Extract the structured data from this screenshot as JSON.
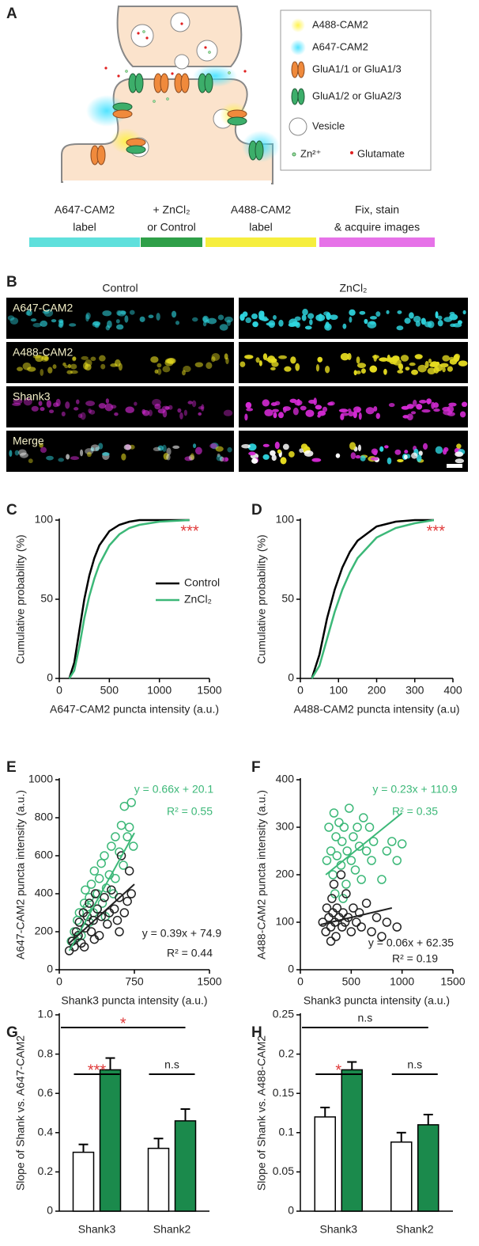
{
  "panel_labels": [
    "A",
    "B",
    "C",
    "D",
    "E",
    "F",
    "G",
    "H"
  ],
  "diagram": {
    "legend": [
      "A488-CAM2",
      "A647-CAM2",
      "GluA1/1 or GluA1/3",
      "GluA1/2 or GluA2/3",
      "Vesicle",
      "Zn²⁺",
      "Glutamate"
    ],
    "steps": [
      {
        "label": [
          "A647-CAM2",
          "label"
        ],
        "color": "#5fe0dc"
      },
      {
        "label": [
          "+ ZnCl₂",
          "or Control"
        ],
        "color": "#2f9f48"
      },
      {
        "label": [
          "A488-CAM2",
          "label"
        ],
        "color": "#f6ee3e"
      },
      {
        "label": [
          "Fix, stain",
          "& acquire images"
        ],
        "color": "#e672e8"
      }
    ]
  },
  "images": {
    "columns": [
      "Control",
      "ZnCl₂"
    ],
    "rows": [
      {
        "label": "A647-CAM2",
        "color": "#2fd6e0"
      },
      {
        "label": "A488-CAM2",
        "color": "#e6dc20"
      },
      {
        "label": "Shank3",
        "color": "#d42ad4"
      },
      {
        "label": "Merge",
        "color": "#ffffff"
      }
    ]
  },
  "chart_data": [
    {
      "type": "line",
      "xlabel": "A647-CAM2 puncta intensity (a.u.)",
      "ylabel": "Cumulative probability (%)",
      "xlim": [
        0,
        1500
      ],
      "ylim": [
        0,
        100
      ],
      "xticks": [
        0,
        500,
        1000,
        1500
      ],
      "yticks": [
        0,
        50,
        100
      ],
      "x": [
        100,
        150,
        200,
        250,
        300,
        350,
        400,
        500,
        600,
        700,
        800,
        1000,
        1300
      ],
      "series": [
        {
          "name": "Control",
          "color": "#000000",
          "values": [
            0,
            10,
            30,
            50,
            65,
            76,
            84,
            93,
            97,
            99,
            100,
            100,
            100
          ]
        },
        {
          "name": "ZnCl₂",
          "color": "#3cb878",
          "values": [
            0,
            5,
            20,
            38,
            52,
            63,
            72,
            84,
            91,
            95,
            97,
            99,
            100
          ]
        }
      ],
      "annotations": [
        {
          "text": "***",
          "color": "#e03a3a"
        }
      ]
    },
    {
      "type": "line",
      "xlabel": "A488-CAM2 puncta intensity (a.u)",
      "ylabel": "Cumulative probability (%)",
      "xlim": [
        0,
        400
      ],
      "ylim": [
        0,
        100
      ],
      "xticks": [
        0,
        100,
        200,
        300,
        400
      ],
      "yticks": [
        0,
        50,
        100
      ],
      "x": [
        30,
        50,
        70,
        90,
        110,
        130,
        150,
        200,
        250,
        300,
        350
      ],
      "series": [
        {
          "color": "#000000",
          "values": [
            0,
            15,
            38,
            56,
            70,
            80,
            87,
            96,
            99,
            100,
            100
          ]
        },
        {
          "color": "#3cb878",
          "values": [
            0,
            8,
            25,
            42,
            56,
            67,
            76,
            89,
            95,
            98,
            100
          ]
        }
      ],
      "annotations": [
        {
          "text": "***",
          "color": "#e03a3a"
        }
      ]
    },
    {
      "type": "scatter",
      "xlabel": "Shank3 puncta intensity (a.u.)",
      "ylabel": "A647-CAM2 puncta intensity (a.u.)",
      "xlim": [
        0,
        1500
      ],
      "ylim": [
        0,
        1000
      ],
      "xticks": [
        0,
        750,
        1500
      ],
      "yticks": [
        0,
        200,
        400,
        600,
        800,
        1000
      ],
      "series": [
        {
          "color": "#3cb878",
          "x": [
            120,
            150,
            180,
            200,
            220,
            250,
            260,
            280,
            300,
            320,
            340,
            350,
            380,
            400,
            420,
            430,
            450,
            470,
            500,
            520,
            540,
            560,
            600,
            620,
            640,
            650,
            680,
            700,
            720,
            740,
            300,
            380,
            180,
            460,
            560
          ],
          "y": [
            150,
            200,
            260,
            300,
            180,
            350,
            420,
            330,
            380,
            450,
            300,
            520,
            400,
            480,
            560,
            350,
            600,
            430,
            500,
            650,
            400,
            700,
            620,
            760,
            550,
            860,
            700,
            750,
            880,
            650,
            250,
            320,
            170,
            280,
            480
          ],
          "fit": {
            "x": [
              100,
              750
            ],
            "y": [
              100,
              720
            ]
          }
        },
        {
          "color": "#222222",
          "x": [
            100,
            130,
            150,
            170,
            190,
            200,
            220,
            240,
            260,
            280,
            300,
            320,
            340,
            360,
            380,
            400,
            420,
            450,
            480,
            500,
            520,
            550,
            580,
            600,
            620,
            650,
            680,
            700,
            720,
            600,
            250,
            350
          ],
          "y": [
            100,
            150,
            120,
            200,
            180,
            250,
            140,
            300,
            220,
            280,
            350,
            200,
            260,
            400,
            320,
            180,
            280,
            380,
            240,
            300,
            420,
            320,
            260,
            380,
            600,
            300,
            360,
            520,
            400,
            200,
            120,
            160
          ],
          "fit": {
            "x": [
              100,
              750
            ],
            "y": [
              140,
              450
            ]
          }
        }
      ],
      "annotations": [
        {
          "text": "y = 0.66x + 20.1",
          "color": "#3cb878"
        },
        {
          "text": "R² = 0.55",
          "color": "#3cb878"
        },
        {
          "text": "y = 0.39x + 74.9",
          "color": "#222222"
        },
        {
          "text": "R² = 0.44",
          "color": "#222222"
        }
      ]
    },
    {
      "type": "scatter",
      "xlabel": "Shank3 puncta intensity (a.u.)",
      "ylabel": "A488-CAM2 puncta intensity (a.u.)",
      "xlim": [
        0,
        1500
      ],
      "ylim": [
        0,
        400
      ],
      "xticks": [
        0,
        500,
        1000,
        1500
      ],
      "yticks": [
        0,
        100,
        200,
        300,
        400
      ],
      "series": [
        {
          "color": "#3cb878",
          "x": [
            260,
            280,
            300,
            320,
            330,
            350,
            360,
            380,
            400,
            410,
            430,
            450,
            460,
            480,
            500,
            520,
            540,
            560,
            580,
            600,
            620,
            650,
            680,
            700,
            720,
            800,
            850,
            900,
            950,
            1000,
            340,
            420
          ],
          "y": [
            230,
            300,
            250,
            200,
            330,
            280,
            240,
            310,
            220,
            270,
            300,
            180,
            250,
            340,
            230,
            280,
            210,
            300,
            260,
            190,
            320,
            250,
            300,
            230,
            270,
            190,
            250,
            270,
            230,
            265,
            160,
            150
          ],
          "fit": {
            "x": [
              250,
              1000
            ],
            "y": [
              200,
              330
            ]
          }
        },
        {
          "color": "#222222",
          "x": [
            220,
            250,
            260,
            280,
            300,
            310,
            320,
            340,
            350,
            360,
            380,
            400,
            410,
            420,
            440,
            450,
            470,
            500,
            520,
            550,
            580,
            600,
            650,
            700,
            750,
            800,
            850,
            950,
            330,
            300
          ],
          "y": [
            100,
            80,
            130,
            110,
            90,
            150,
            120,
            100,
            70,
            130,
            110,
            200,
            90,
            120,
            100,
            160,
            110,
            80,
            130,
            100,
            120,
            90,
            140,
            80,
            110,
            70,
            100,
            90,
            180,
            60
          ],
          "fit": {
            "x": [
              200,
              900
            ],
            "y": [
              95,
              130
            ]
          }
        }
      ],
      "annotations": [
        {
          "text": "y = 0.23x + 110.9",
          "color": "#3cb878"
        },
        {
          "text": "R² = 0.35",
          "color": "#3cb878"
        },
        {
          "text": "y = 0.06x + 62.35",
          "color": "#222222"
        },
        {
          "text": "R² = 0.19",
          "color": "#222222"
        }
      ]
    },
    {
      "type": "bar",
      "ylabel": "Slope of Shank vs. A647-CAM2",
      "categories": [
        "Shank3",
        "Shank2"
      ],
      "ylim": [
        0,
        1
      ],
      "yticks": [
        0,
        0.2,
        0.4,
        0.6,
        0.8,
        {
          "value": 1,
          "label": "1.0"
        }
      ],
      "series": [
        {
          "color": "#ffffff",
          "values": [
            0.3,
            0.32
          ],
          "errors": [
            0.04,
            0.05
          ]
        },
        {
          "color": "#1b8a4c",
          "values": [
            0.72,
            0.46
          ],
          "errors": [
            0.06,
            0.06
          ]
        }
      ],
      "significance": [
        {
          "label": "***",
          "color": "#e03a3a",
          "bars": [
            [
              0,
              0
            ],
            [
              0,
              1
            ]
          ]
        },
        {
          "label": "n.s",
          "color": "#222222",
          "bars": [
            [
              1,
              0
            ],
            [
              1,
              1
            ]
          ]
        },
        {
          "label": "*",
          "color": "#e03a3a",
          "bars": [
            [
              0,
              0
            ],
            [
              1,
              1
            ]
          ]
        }
      ]
    },
    {
      "type": "bar",
      "ylabel": "Slope of Shank vs. A488-CAM2",
      "categories": [
        "Shank3",
        "Shank2"
      ],
      "ylim": [
        0,
        0.25
      ],
      "yticks": [
        0,
        0.05,
        0.1,
        0.15,
        0.2,
        0.25
      ],
      "series": [
        {
          "color": "#ffffff",
          "values": [
            0.12,
            0.088
          ],
          "errors": [
            0.012,
            0.012
          ]
        },
        {
          "color": "#1b8a4c",
          "values": [
            0.18,
            0.11
          ],
          "errors": [
            0.01,
            0.013
          ]
        }
      ],
      "significance": [
        {
          "label": "*",
          "color": "#e03a3a",
          "bars": [
            [
              0,
              0
            ],
            [
              0,
              1
            ]
          ]
        },
        {
          "label": "n.s",
          "color": "#222222",
          "bars": [
            [
              1,
              0
            ],
            [
              1,
              1
            ]
          ]
        },
        {
          "label": "n.s",
          "color": "#222222",
          "bars": [
            [
              0,
              0
            ],
            [
              1,
              1
            ]
          ]
        }
      ]
    }
  ]
}
